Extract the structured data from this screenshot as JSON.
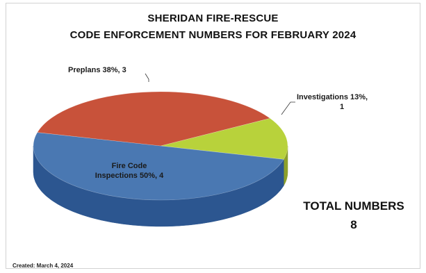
{
  "chart_data": {
    "type": "pie",
    "title": "SHERIDAN FIRE-RESCUE",
    "subtitle": "CODE ENFORCEMENT NUMBERS FOR FEBRUARY 2024",
    "slices": [
      {
        "key": "investigations",
        "name": "Investigations",
        "percent": 13,
        "value": 1,
        "color": "#b8d23b",
        "side_color": "#8da02a",
        "label_lines": [
          "Investigations  13%,",
          "1"
        ]
      },
      {
        "key": "fire-code",
        "name": "Fire Code Inspections",
        "percent": 50,
        "value": 4,
        "color": "#4a78b2",
        "side_color": "#2c5690",
        "label_lines": [
          "Fire Code",
          "Inspections  50%, 4"
        ]
      },
      {
        "key": "preplans",
        "name": "Preplans",
        "percent": 38,
        "value": 3,
        "color": "#c8523a",
        "side_color": "#9a3a26",
        "label_lines": [
          "Preplans  38%, 3"
        ]
      }
    ],
    "legend": "none"
  },
  "summary": {
    "total_label": "TOTAL NUMBERS",
    "total_value": "8"
  },
  "footer": {
    "created": "Created:  March 4, 2024"
  }
}
